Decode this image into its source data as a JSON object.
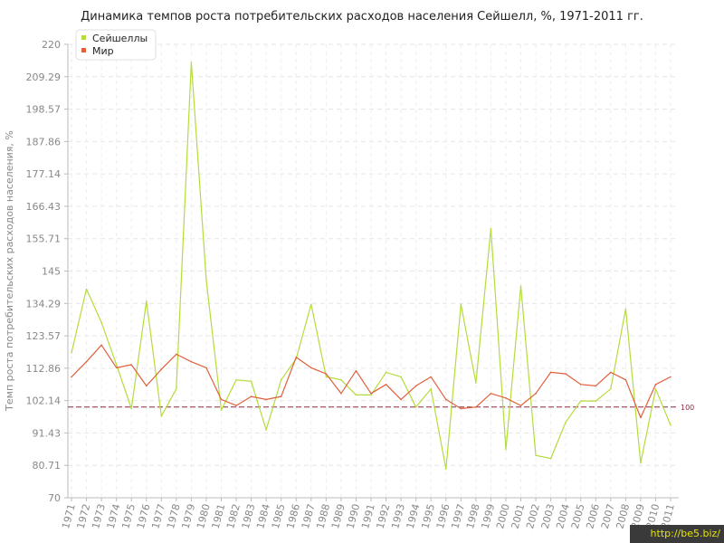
{
  "chart_data": {
    "type": "line",
    "title": "Динамика темпов роста потребительских расходов населения Сейшелл, %, 1971-2011 гг.",
    "ylabel": "Темп роста потребительских расходов населения, %",
    "xlabel": "",
    "ylim": [
      70,
      220
    ],
    "yticks": [
      "70",
      "80.71",
      "91.43",
      "102.14",
      "112.86",
      "123.57",
      "134.29",
      "145",
      "155.71",
      "166.43",
      "177.14",
      "187.86",
      "198.57",
      "209.29",
      "220"
    ],
    "x": [
      1971,
      1972,
      1973,
      1974,
      1975,
      1976,
      1977,
      1978,
      1979,
      1980,
      1981,
      1982,
      1983,
      1984,
      1985,
      1986,
      1987,
      1988,
      1989,
      1990,
      1991,
      1992,
      1993,
      1994,
      1995,
      1996,
      1997,
      1998,
      1999,
      2000,
      2001,
      2002,
      2003,
      2004,
      2005,
      2006,
      2007,
      2008,
      2009,
      2010,
      2011
    ],
    "reference_line": {
      "value": 100,
      "label": "100",
      "color": "#8a2a3a"
    },
    "grid": true,
    "legend_position": "top-left",
    "series": [
      {
        "name": "Сейшеллы",
        "color": "#b5dc3c",
        "values": [
          118,
          139,
          128,
          114,
          99.5,
          135,
          97,
          106,
          214,
          142,
          99,
          109,
          108.5,
          92.5,
          109,
          116,
          134,
          110,
          109,
          104,
          104,
          111.5,
          110,
          100,
          106,
          79.5,
          134,
          108,
          159,
          86,
          140,
          84,
          83,
          95,
          102,
          102,
          106,
          132.5,
          81.5,
          106,
          94
        ]
      },
      {
        "name": "Мир",
        "color": "#e0603c",
        "values": [
          110,
          115,
          120.5,
          113,
          114,
          107,
          112.5,
          117.5,
          115,
          113,
          102.5,
          100.5,
          103.5,
          102.5,
          103.5,
          116.5,
          113,
          111,
          104.5,
          112,
          104.5,
          107.5,
          102.5,
          107,
          110,
          102.5,
          99.5,
          100,
          104.5,
          103,
          100.5,
          104.5,
          111.5,
          111,
          107.5,
          107,
          111.5,
          109,
          96.5,
          107.5,
          110
        ]
      }
    ]
  },
  "watermark": "http://be5.biz/"
}
